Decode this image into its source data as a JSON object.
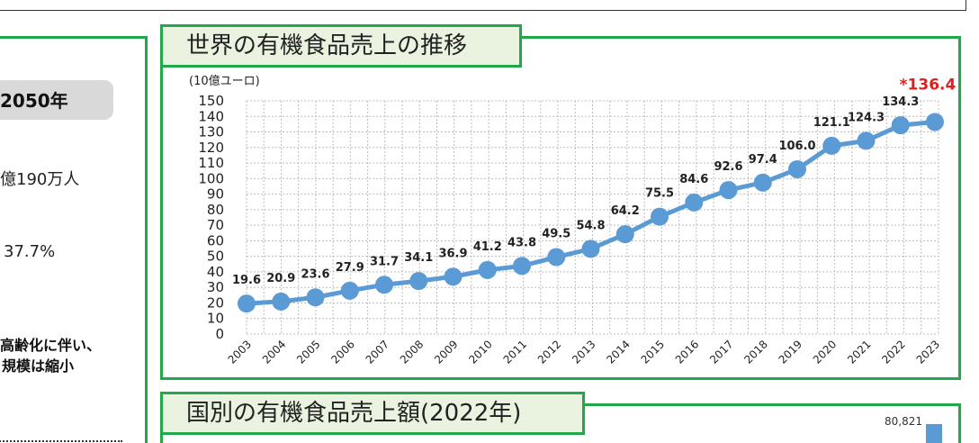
{
  "left_panel": {
    "pill_text": "2050年",
    "line1": "億190万人",
    "line2": "37.7%",
    "bold_line1": "高齢化に伴い、",
    "bold_line2": "規模は縮小"
  },
  "chart_panel": {
    "title": "世界の有機食品売上の推移"
  },
  "second_panel": {
    "title": "国別の有機食品売上額(2022年)",
    "value_label": "80,821"
  },
  "colors": {
    "panel_border": "#22a84a",
    "title_bg": "#eaf3e0",
    "series": "#5b9bd5",
    "highlight": "#e02020"
  },
  "chart_data": {
    "type": "line",
    "title": "",
    "ylabel": "(10億ユーロ)",
    "xlabel": "",
    "x": [
      "2003",
      "2004",
      "2005",
      "2006",
      "2007",
      "2008",
      "2009",
      "2010",
      "2011",
      "2012",
      "2013",
      "2014",
      "2015",
      "2016",
      "2017",
      "2018",
      "2019",
      "2020",
      "2021",
      "2022",
      "2023"
    ],
    "values": [
      19.6,
      20.9,
      23.6,
      27.9,
      31.7,
      34.1,
      36.9,
      41.2,
      43.8,
      49.5,
      54.8,
      64.2,
      75.5,
      84.6,
      92.6,
      97.4,
      106.0,
      121.1,
      124.3,
      134.3,
      136.4
    ],
    "data_labels": [
      "19.6",
      "20.9",
      "23.6",
      "27.9",
      "31.7",
      "34.1",
      "36.9",
      "41.2",
      "43.8",
      "49.5",
      "54.8",
      "64.2",
      "75.5",
      "84.6",
      "92.6",
      "97.4",
      "106.0",
      "121.1",
      "124.3",
      "134.3",
      "*136.4"
    ],
    "ylim": [
      0,
      150
    ],
    "yticks": [
      0,
      10,
      20,
      30,
      40,
      50,
      60,
      70,
      80,
      90,
      100,
      110,
      120,
      130,
      140,
      150
    ],
    "grid": true,
    "legend": "none"
  }
}
